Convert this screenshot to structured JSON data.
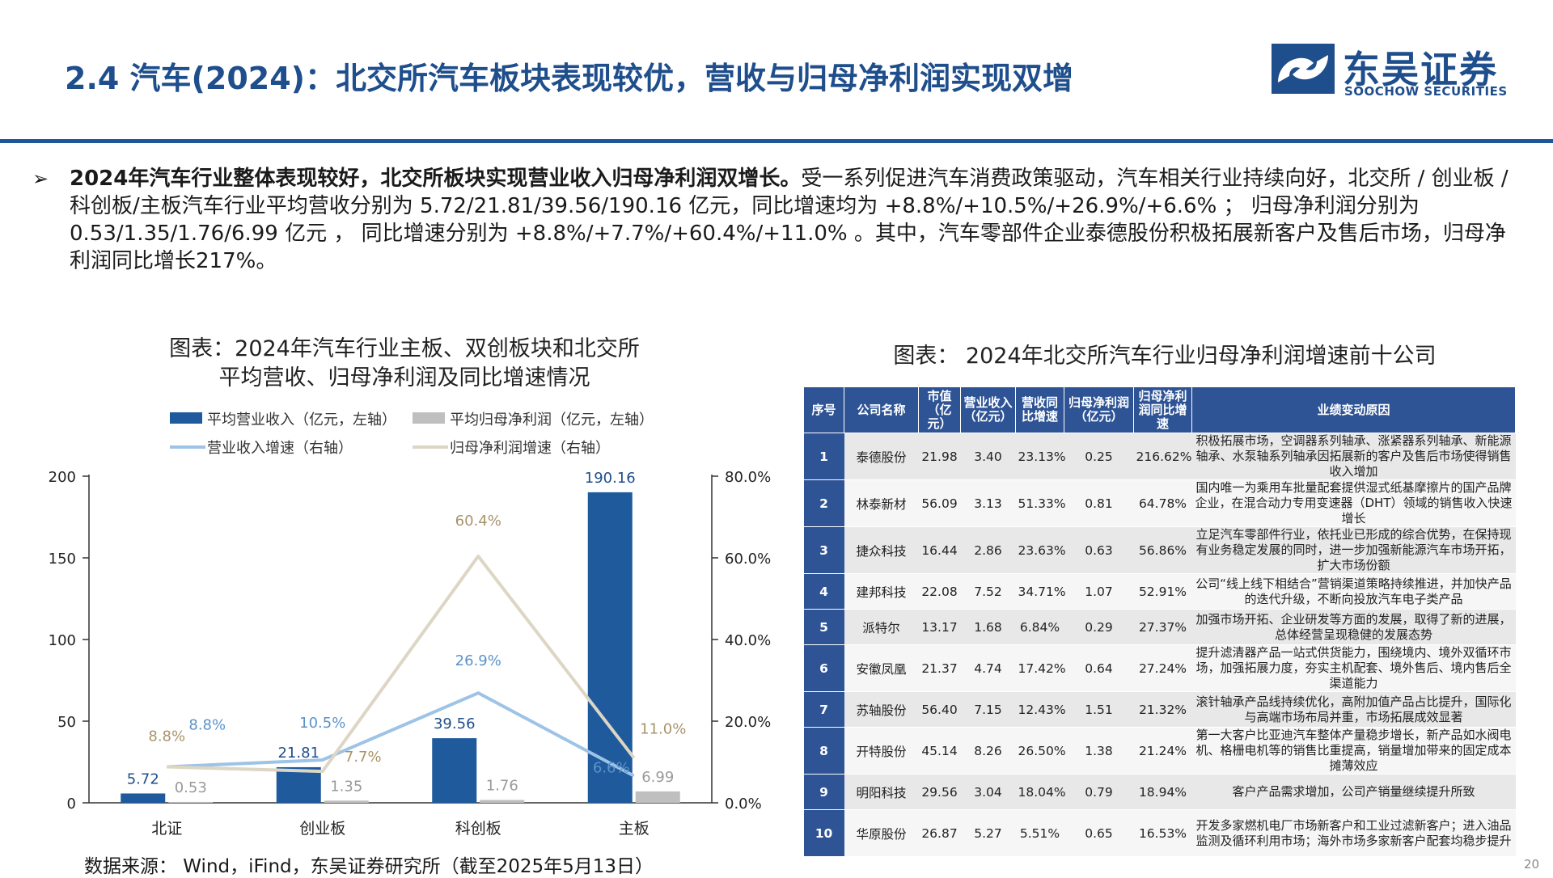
{
  "header": {
    "title": "2.4 汽车(2024)：北交所汽车板块表现较优，营收与归母净利润实现双增",
    "logo_cn": "东吴证券",
    "logo_en": "SOOCHOW SECURITIES"
  },
  "bullet": {
    "mark": "➢",
    "bold": "2024年汽车行业整体表现较好，北交所板块实现营业收入归母净利润双增长。",
    "text": "受一系列促进汽车消费政策驱动，汽车相关行业持续向好，北交所 / 创业板 / 科创板/主板汽车行业平均营收分别为 5.72/21.81/39.56/190.16 亿元，同比增速均为 +8.8%/+10.5%/+26.9%/+6.6% ； 归母净利润分别为 0.53/1.35/1.76/6.99 亿元 ， 同比增速分别为 +8.8%/+7.7%/+60.4%/+11.0% 。其中，汽车零部件企业泰德股份积极拓展新客户及售后市场，归母净利润同比增长217%。"
  },
  "chart_title_lines": [
    "图表：2024年汽车行业主板、双创板块和北交所",
    "平均营收、归母净利润及同比增速情况"
  ],
  "chart_data": {
    "type": "bar",
    "categories": [
      "北证",
      "创业板",
      "科创板",
      "主板"
    ],
    "series": [
      {
        "name": "平均营业收入（亿元，左轴）",
        "kind": "bar",
        "axis": "left",
        "color": "#1f5a9c",
        "values": [
          5.72,
          21.81,
          39.56,
          190.16
        ],
        "labels": [
          "5.72",
          "21.81",
          "39.56",
          "190.16"
        ]
      },
      {
        "name": "平均归母净利润（亿元，左轴）",
        "kind": "bar",
        "axis": "left",
        "color": "#bfbfbf",
        "values": [
          0.53,
          1.35,
          1.76,
          6.99
        ],
        "labels": [
          "0.53",
          "1.35",
          "1.76",
          "6.99"
        ]
      },
      {
        "name": "营业收入增速（右轴）",
        "kind": "line",
        "axis": "right",
        "color": "#9dc3e6",
        "values": [
          8.8,
          10.5,
          26.9,
          6.6
        ],
        "labels": [
          "8.8%",
          "10.5%",
          "26.9%",
          "6.6%"
        ]
      },
      {
        "name": "归母净利润增速（右轴）",
        "kind": "line",
        "axis": "right",
        "color": "#ddd6c4",
        "values": [
          8.8,
          7.7,
          60.4,
          11.0
        ],
        "labels": [
          "8.8%",
          "7.7%",
          "60.4%",
          "11.0%"
        ]
      }
    ],
    "y_left": {
      "min": 0,
      "max": 200,
      "ticks": [
        "0",
        "50",
        "100",
        "150",
        "200"
      ]
    },
    "y_right": {
      "min": 0,
      "max": 80,
      "ticks": [
        "0.0%",
        "20.0%",
        "40.0%",
        "60.0%",
        "80.0%"
      ]
    },
    "legend_position": "top",
    "grid": false
  },
  "table_title": "图表：  2024年北交所汽车行业归母净利润增速前十公司",
  "table": {
    "headers": [
      "序号",
      "公司名称",
      "市值（亿元）",
      "营业收入（亿元）",
      "营收同比增速",
      "归母净利润（亿元）",
      "归母净利润同比增速",
      "业绩变动原因"
    ],
    "rows": [
      {
        "idx": "1",
        "name": "泰德股份",
        "mv": "21.98",
        "rev": "3.40",
        "rev_g": "23.13%",
        "np": "0.25",
        "np_g": "216.62%",
        "reason": "积极拓展市场，空调器系列轴承、涨紧器系列轴承、新能源轴承、水泵轴系列轴承因拓展新的客户及售后市场使得销售收入增加"
      },
      {
        "idx": "2",
        "name": "林泰新材",
        "mv": "56.09",
        "rev": "3.13",
        "rev_g": "51.33%",
        "np": "0.81",
        "np_g": "64.78%",
        "reason": "国内唯一为乘用车批量配套提供湿式纸基摩擦片的国产品牌企业，在混合动力专用变速器（DHT）领域的销售收入快速增长"
      },
      {
        "idx": "3",
        "name": "捷众科技",
        "mv": "16.44",
        "rev": "2.86",
        "rev_g": "23.63%",
        "np": "0.63",
        "np_g": "56.86%",
        "reason": "立足汽车零部件行业，依托业已形成的综合优势，在保持现有业务稳定发展的同时，进一步加强新能源汽车市场开拓，扩大市场份额"
      },
      {
        "idx": "4",
        "name": "建邦科技",
        "mv": "22.08",
        "rev": "7.52",
        "rev_g": "34.71%",
        "np": "1.07",
        "np_g": "52.91%",
        "reason": "公司“线上线下相结合”营销渠道策略持续推进，并加快产品的迭代升级，不断向投放汽车电子类产品"
      },
      {
        "idx": "5",
        "name": "派特尔",
        "mv": "13.17",
        "rev": "1.68",
        "rev_g": "6.84%",
        "np": "0.29",
        "np_g": "27.37%",
        "reason": "加强市场开拓、企业研发等方面的发展，取得了新的进展，总体经营呈现稳健的发展态势"
      },
      {
        "idx": "6",
        "name": "安徽凤凰",
        "mv": "21.37",
        "rev": "4.74",
        "rev_g": "17.42%",
        "np": "0.64",
        "np_g": "27.24%",
        "reason": "提升滤清器产品一站式供货能力，围绕境内、境外双循环市场，加强拓展力度，夯实主机配套、境外售后、境内售后全渠道能力"
      },
      {
        "idx": "7",
        "name": "苏轴股份",
        "mv": "56.40",
        "rev": "7.15",
        "rev_g": "12.43%",
        "np": "1.51",
        "np_g": "21.32%",
        "reason": "滚针轴承产品线持续优化，高附加值产品占比提升，国际化与高端市场布局并重，市场拓展成效显著"
      },
      {
        "idx": "8",
        "name": "开特股份",
        "mv": "45.14",
        "rev": "8.26",
        "rev_g": "26.50%",
        "np": "1.38",
        "np_g": "21.24%",
        "reason": "第一大客户比亚迪汽车整体产量稳步增长，新产品如水阀电机、格栅电机等的销售比重提高，销量增加带来的固定成本摊薄效应"
      },
      {
        "idx": "9",
        "name": "明阳科技",
        "mv": "29.56",
        "rev": "3.04",
        "rev_g": "18.04%",
        "np": "0.79",
        "np_g": "18.94%",
        "reason": "客户产品需求增加，公司产销量继续提升所致"
      },
      {
        "idx": "10",
        "name": "华原股份",
        "mv": "26.87",
        "rev": "5.27",
        "rev_g": "5.51%",
        "np": "0.65",
        "np_g": "16.53%",
        "reason": "开发多家燃机电厂市场新客户和工业过滤新客户；进入油品监测及循环利用市场；海外市场多家新客户配套均稳步提升"
      }
    ]
  },
  "source": "数据来源： Wind，iFind，东吴证券研究所（截至2025年5月13日）",
  "page_number": "20"
}
